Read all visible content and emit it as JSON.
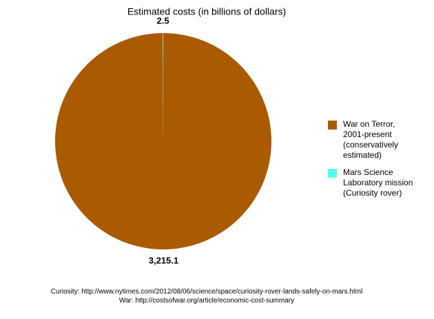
{
  "chart_data": {
    "type": "pie",
    "title": "Estimated costs (in billions of dollars)",
    "categories": [
      "War on Terror, 2001-present (conservatively estimated)",
      "Mars Science Laboratory mission (Curiosity rover)"
    ],
    "values": [
      3215.1,
      2.5
    ],
    "value_labels": [
      "3,215.1",
      "2.5"
    ],
    "colors": [
      "#aa5a00",
      "#55fff0"
    ],
    "sources": [
      "Curiosity: http://www.nytimes.com/2012/08/06/science/space/curiosity-rover-lands-safely-on-mars.html",
      "War: http://costsofwar.org/article/economic-cost-summary"
    ]
  }
}
